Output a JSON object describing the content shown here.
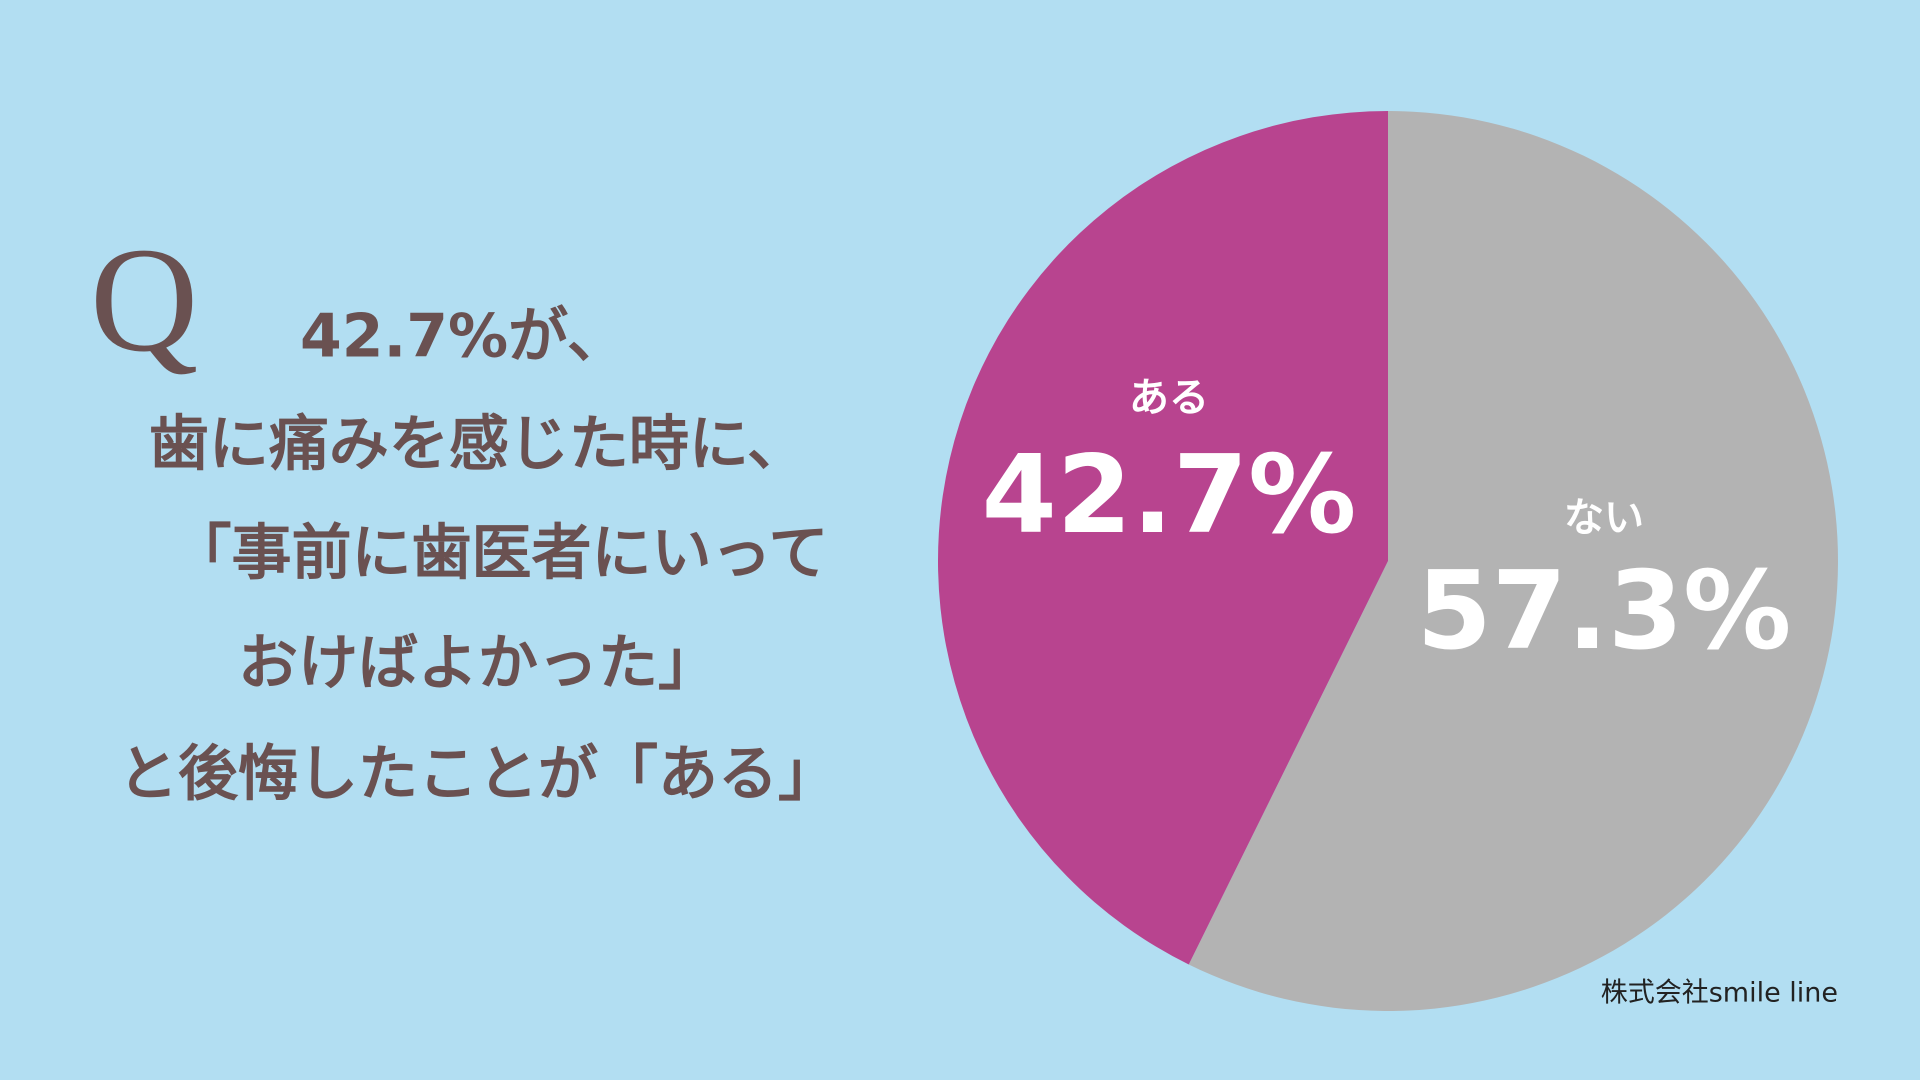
{
  "q_mark": "Q",
  "headline_lines": [
    "42.7%が、",
    "歯に痛みを感じた時に、",
    "「事前に歯医者にいって",
    "おけばよかった」",
    "と後悔したことが「ある」"
  ],
  "source": "株式会社smile line",
  "chart_data": {
    "type": "pie",
    "categories": [
      "ない",
      "ある"
    ],
    "values": [
      57.3,
      42.7
    ],
    "value_labels": [
      "57.3%",
      "42.7%"
    ],
    "colors": [
      "#b3b3b3",
      "#b8448f"
    ]
  }
}
